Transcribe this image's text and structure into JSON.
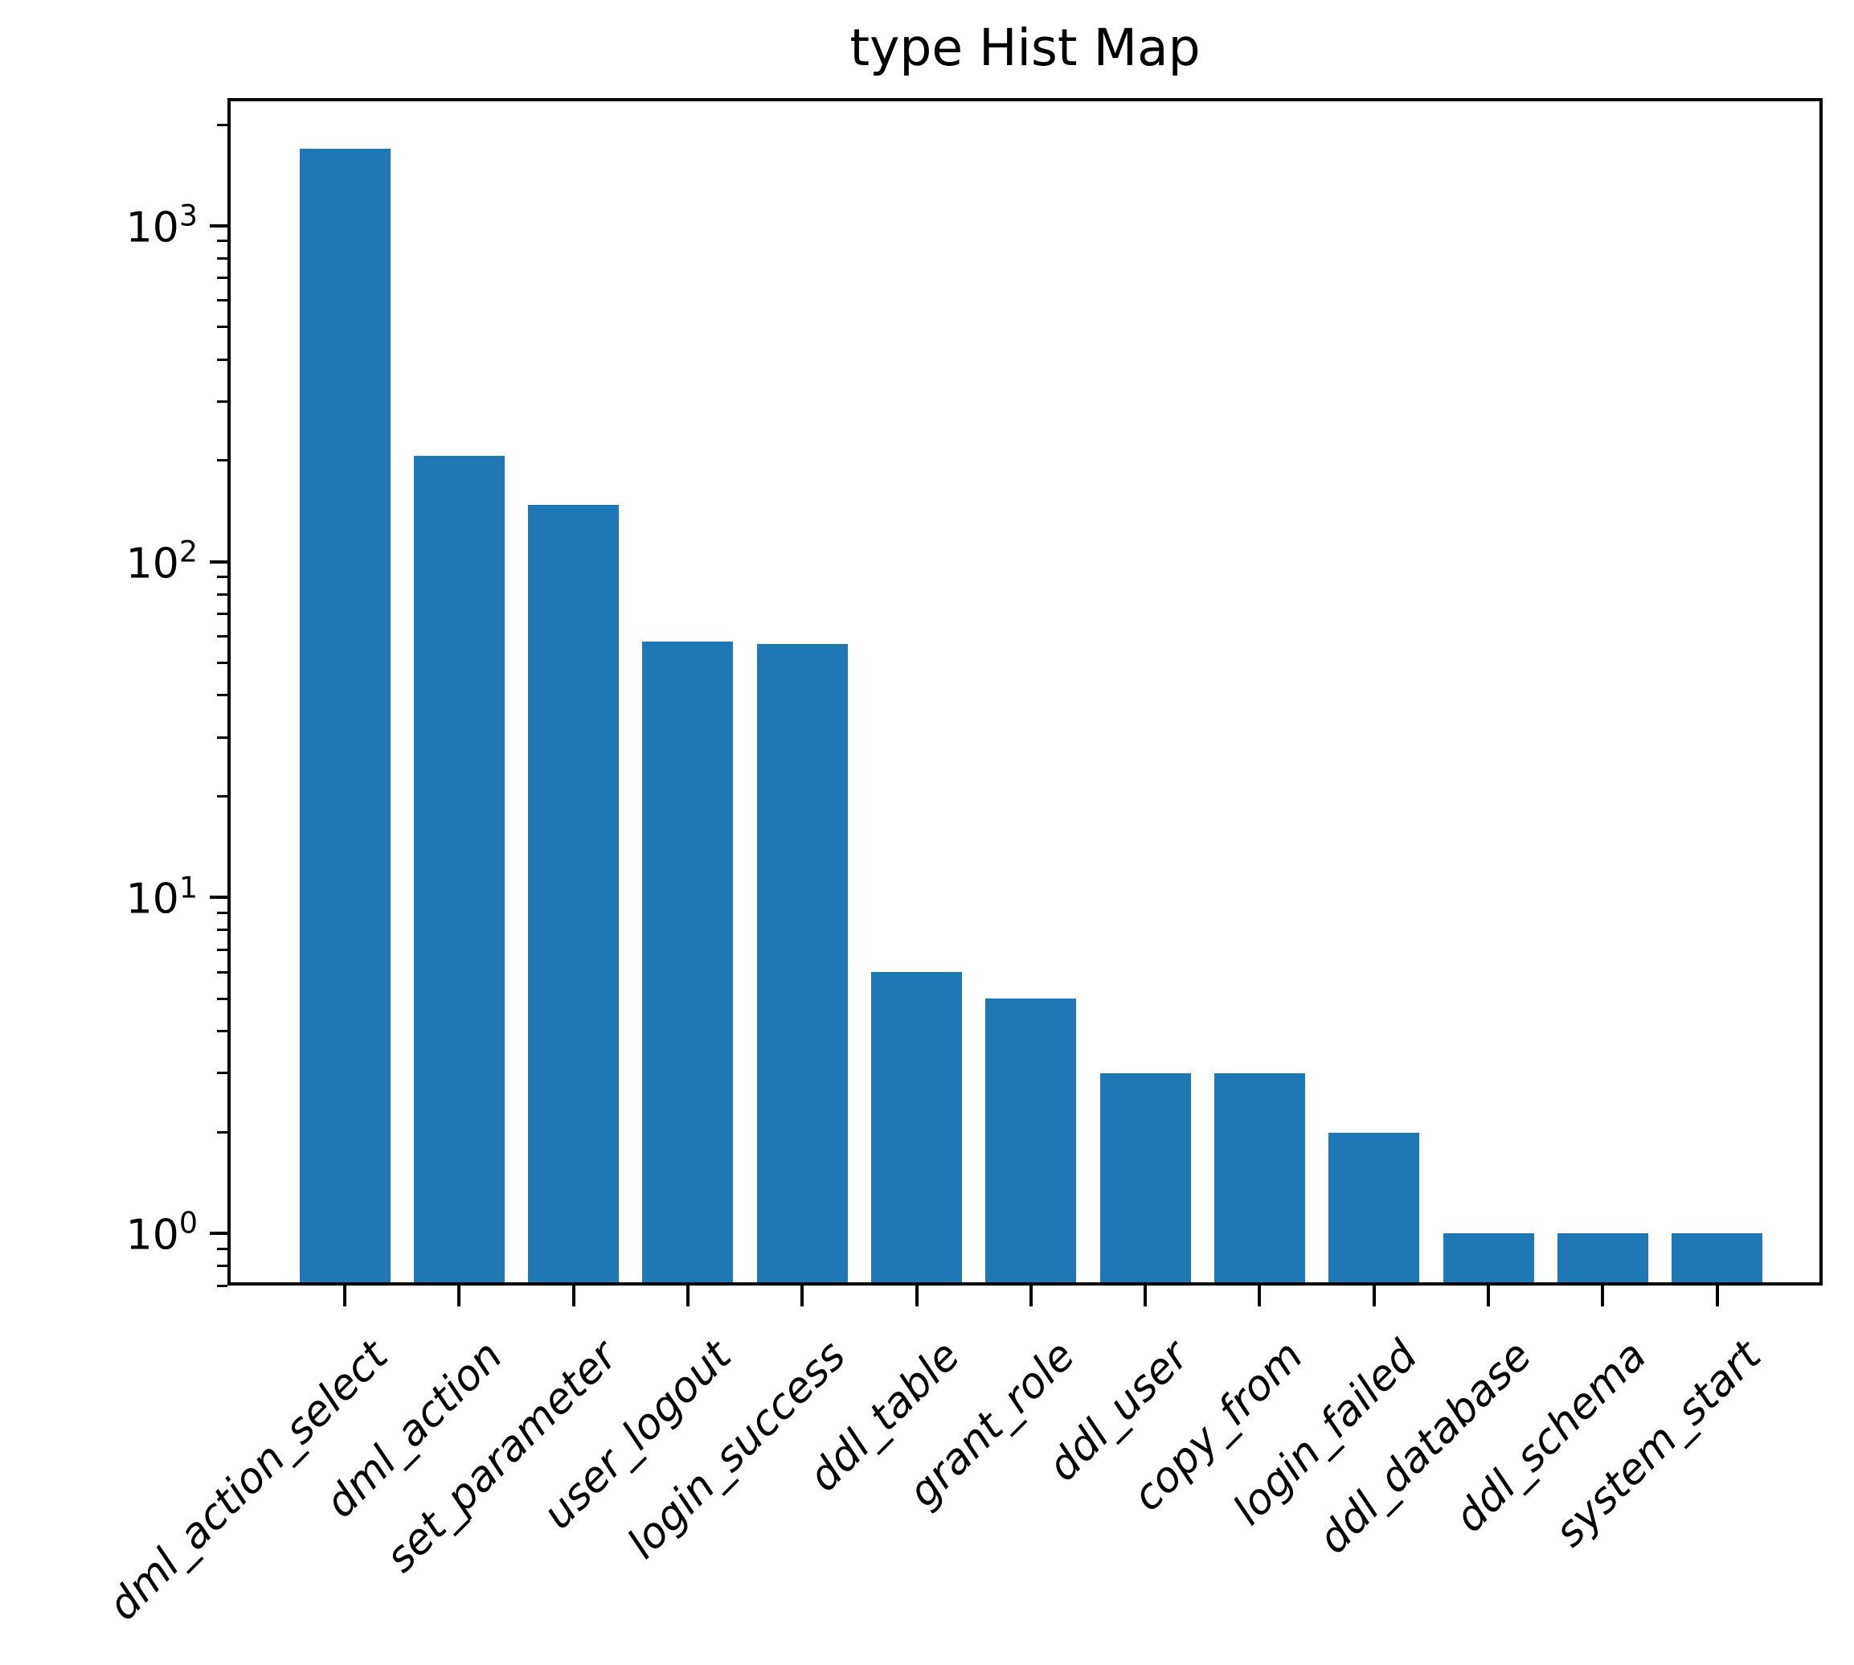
{
  "figure": {
    "background_color": "#ffffff",
    "spine_color": "#000000",
    "text_color": "#000000"
  },
  "chart_data": {
    "type": "bar",
    "title": "type Hist Map",
    "xlabel": "",
    "ylabel": "",
    "categories": [
      "dml_action_select",
      "dml_action",
      "set_parameter",
      "user_logout",
      "login_success",
      "ddl_table",
      "grant_role",
      "ddl_user",
      "copy_from",
      "login_failed",
      "ddl_database",
      "ddl_schema",
      "system_start"
    ],
    "values": [
      1700,
      207,
      148,
      58,
      57,
      6,
      5,
      3,
      3,
      2,
      1,
      1,
      1
    ],
    "yscale": "log",
    "ylim": [
      0.7,
      2400
    ],
    "y_tick_labels": [
      "10^0",
      "10^1",
      "10^2",
      "10^3"
    ],
    "y_minor_ticks": true,
    "x_tick_rotation": 45,
    "x_tick_style": "italic",
    "grid": false,
    "legend": null,
    "bar_color": "#1f77b4"
  }
}
